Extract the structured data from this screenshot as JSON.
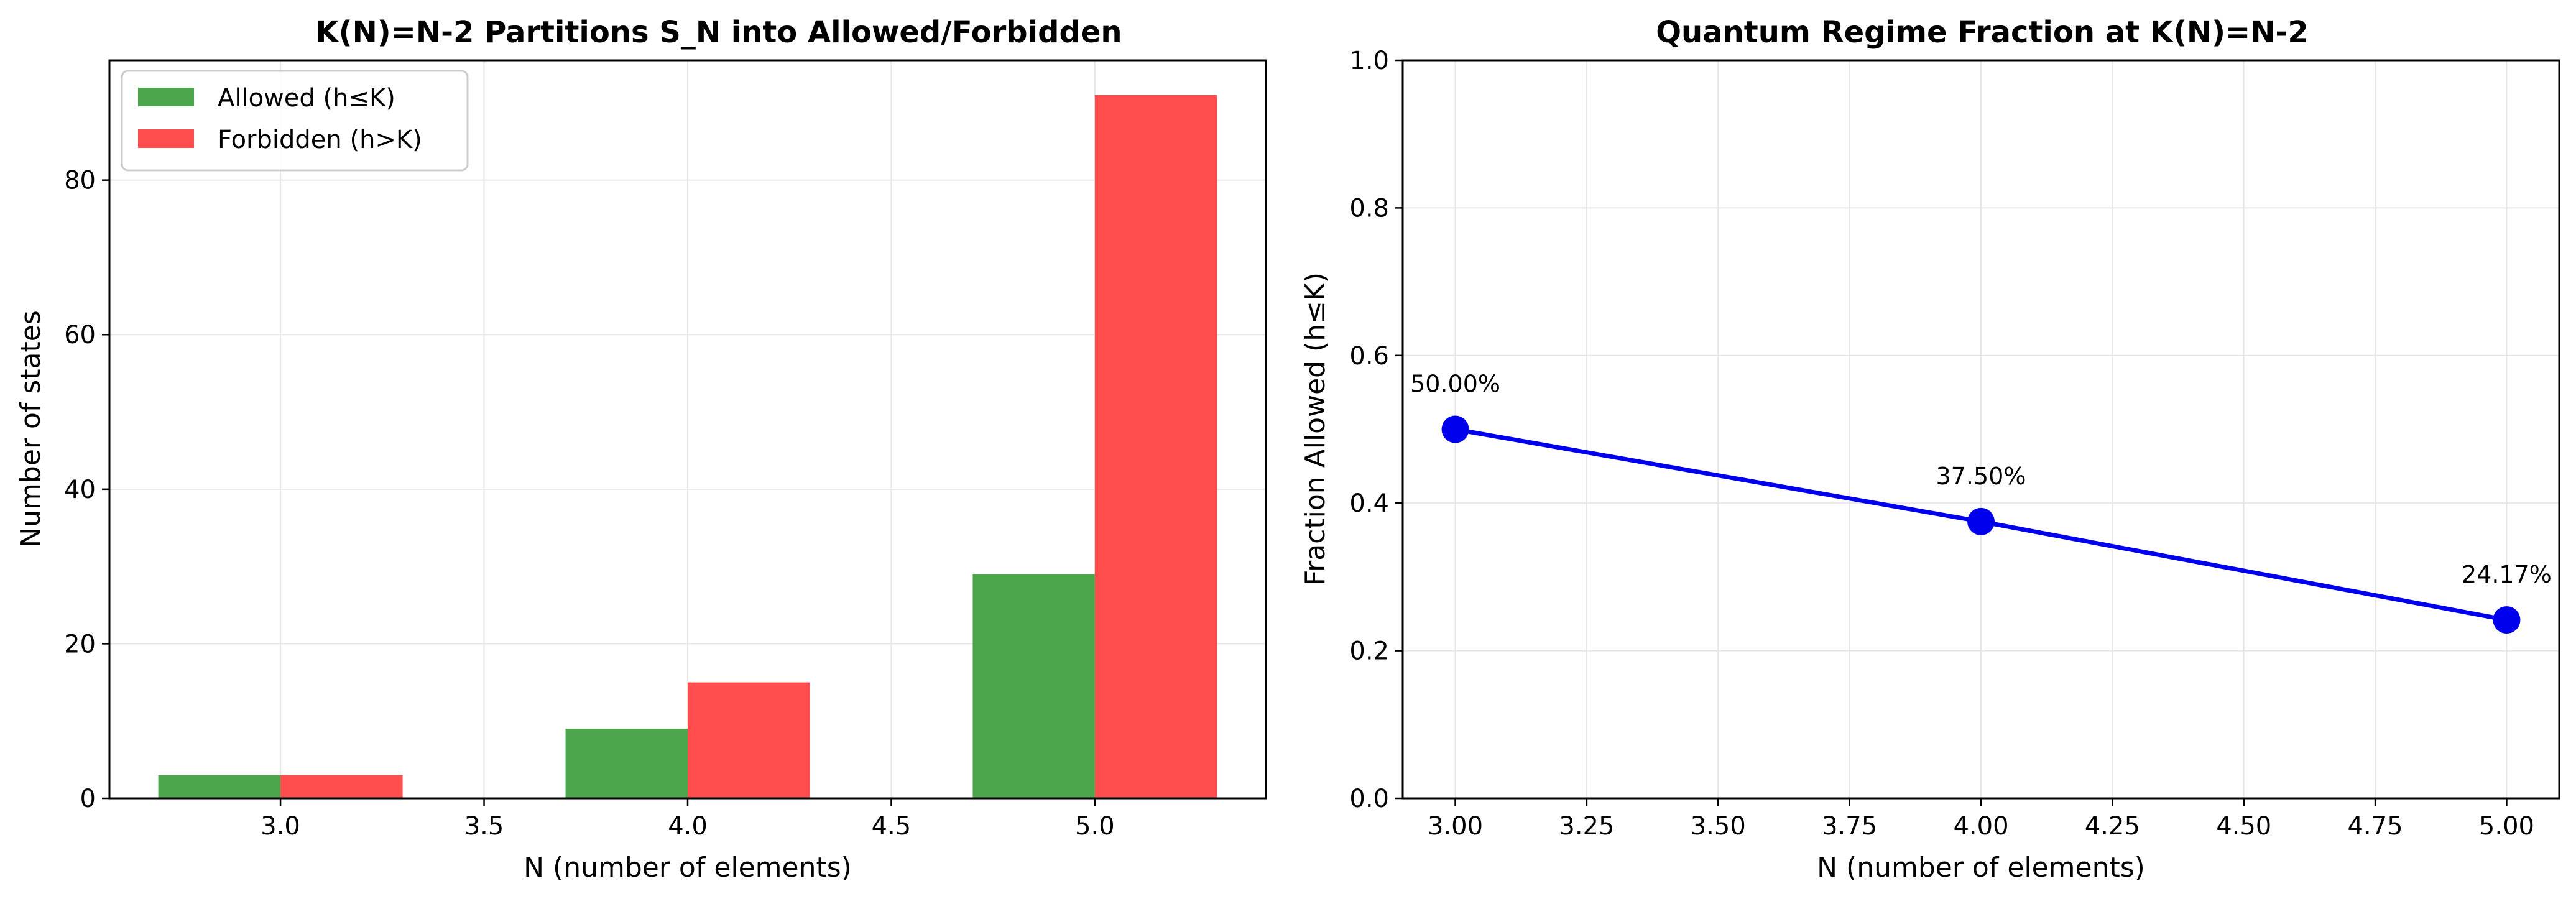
{
  "chart_data": [
    {
      "type": "bar",
      "title": "K(N)=N-2 Partitions S_N into Allowed/Forbidden",
      "xlabel": "N (number of elements)",
      "ylabel": "Number of states",
      "x": [
        3,
        4,
        5
      ],
      "series": [
        {
          "name": "Allowed (h≤K)",
          "values": [
            3,
            9,
            29
          ],
          "color": "#4ca64c"
        },
        {
          "name": "Forbidden (h>K)",
          "values": [
            3,
            15,
            91
          ],
          "color": "#ff4c4c"
        }
      ],
      "xlim": [
        2.58,
        5.42
      ],
      "ylim": [
        0,
        95.5
      ],
      "xticks": [
        "3.0",
        "3.5",
        "4.0",
        "4.5",
        "5.0"
      ],
      "yticks": [
        "0",
        "20",
        "40",
        "60",
        "80"
      ],
      "grid": true,
      "legend_position": "upper-left"
    },
    {
      "type": "line",
      "title": "Quantum Regime Fraction at K(N)=N-2",
      "xlabel": "N (number of elements)",
      "ylabel": "Fraction Allowed (h≤K)",
      "x": [
        3,
        4,
        5
      ],
      "series": [
        {
          "values": [
            0.5,
            0.375,
            0.2417
          ],
          "color": "#0000ee"
        }
      ],
      "data_labels": [
        "50.00%",
        "37.50%",
        "24.17%"
      ],
      "xlim": [
        2.9,
        5.1
      ],
      "ylim": [
        0,
        1.0
      ],
      "xticks": [
        "3.00",
        "3.25",
        "3.50",
        "3.75",
        "4.00",
        "4.25",
        "4.50",
        "4.75",
        "5.00"
      ],
      "yticks": [
        "0.0",
        "0.2",
        "0.4",
        "0.6",
        "0.8",
        "1.0"
      ],
      "grid": true
    }
  ]
}
